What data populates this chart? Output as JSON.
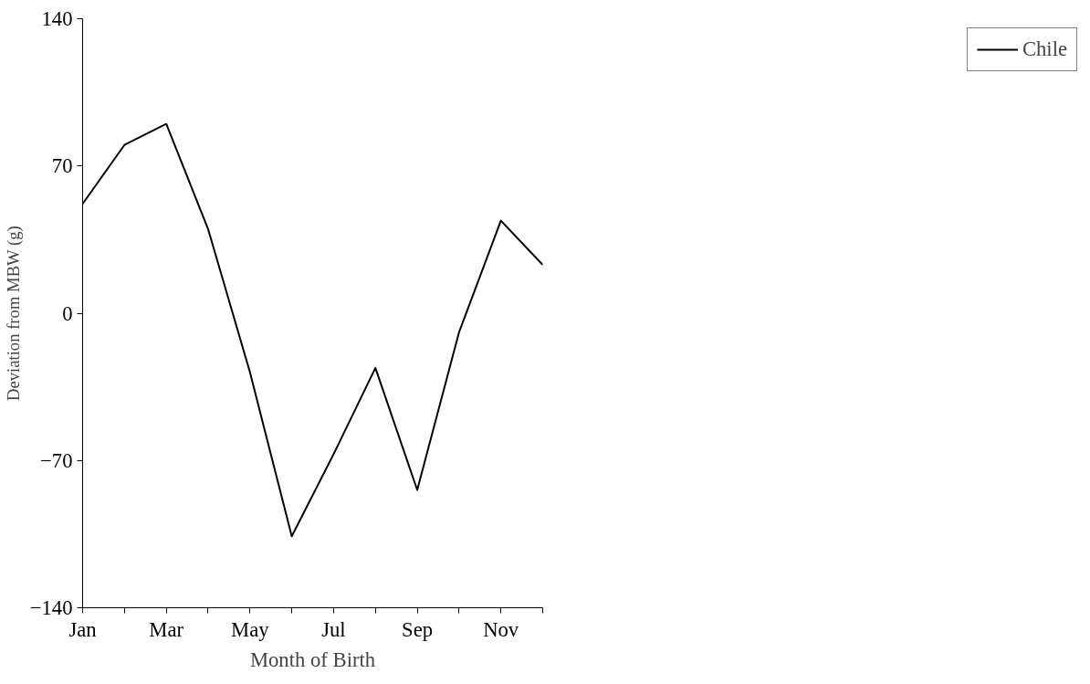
{
  "chart_data": {
    "type": "line",
    "xlabel": "Month of Birth",
    "ylabel": "Deviation from MBW (g)",
    "categories": [
      "Jan",
      null,
      "Mar",
      null,
      "May",
      null,
      "Jul",
      null,
      "Sep",
      null,
      "Nov",
      null
    ],
    "series": [
      {
        "name": "Chile",
        "color": "#000000",
        "values": [
          52,
          80,
          90,
          40,
          -28,
          -106,
          -67,
          -26,
          -84,
          -9,
          44,
          23
        ]
      }
    ],
    "ylim": [
      -140,
      140
    ],
    "yticks": [
      -140,
      -70,
      0,
      70,
      140
    ],
    "grid": false,
    "legend": "right",
    "marker": "none",
    "line_style": "solid"
  }
}
